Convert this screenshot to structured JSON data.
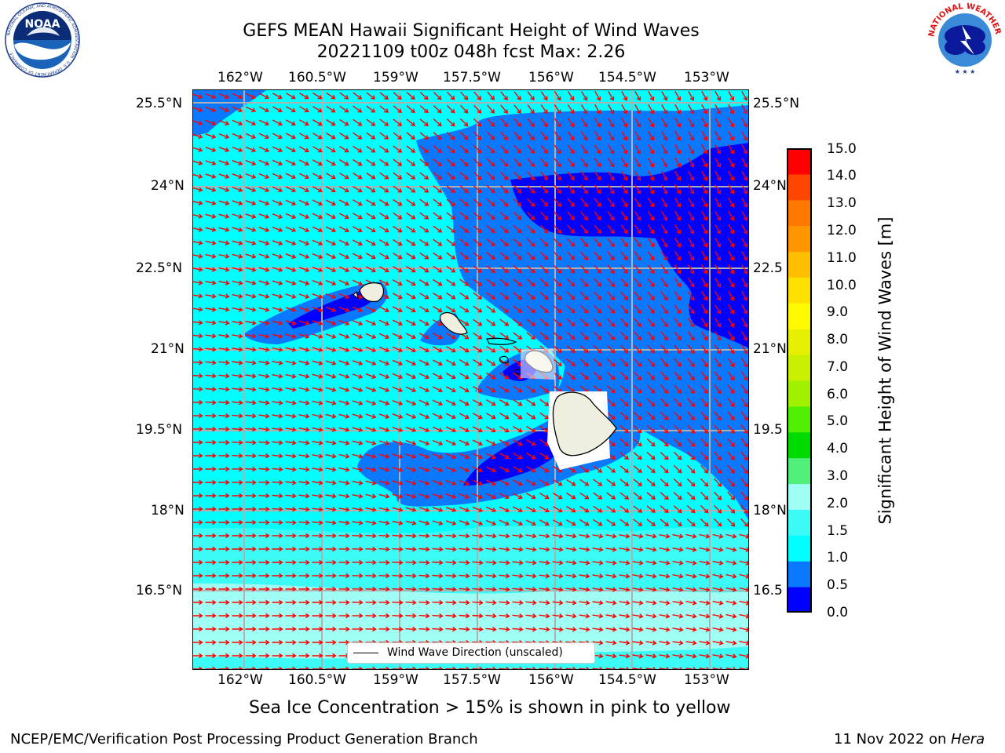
{
  "header": {
    "title_line1": "GEFS MEAN Hawaii Significant Height of Wind Waves",
    "title_line2": "20221109 t00z 048h fcst   Max: 2.26",
    "noaa_logo_text": "NOAA",
    "noaa_logo_ring_text": "NATIONAL OCEANIC AND ATMOSPHERIC ADMINISTRATION · U.S. DEPARTMENT OF COMMERCE",
    "nws_logo_ring_text": "NATIONAL WEATHER SERVICE"
  },
  "map": {
    "lon_ticks": [
      "162°W",
      "160.5°W",
      "159°W",
      "157.5°W",
      "156°W",
      "154.5°W",
      "153°W"
    ],
    "lat_ticks_left": [
      "25.5°N",
      "24°N",
      "22.5°N",
      "21°N",
      "19.5°N",
      "18°N",
      "16.5°N"
    ],
    "lat_ticks_right": [
      "25.5°N",
      "24°N",
      "22.5",
      "21°N",
      "19.5",
      "18°N",
      "16.5"
    ],
    "legend_label": "Wind Wave Direction (unscaled)",
    "wave_direction_color": "#ff0000"
  },
  "colorbar": {
    "ticks": [
      "15.0",
      "14.0",
      "13.0",
      "12.0",
      "11.0",
      "10.0",
      "9.0",
      "8.0",
      "7.0",
      "6.0",
      "5.0",
      "4.0",
      "3.0",
      "2.0",
      "1.5",
      "1.0",
      "0.5",
      "0.0"
    ],
    "colors": [
      "#0000ff",
      "#0a78ff",
      "#00ffff",
      "#3cfaf5",
      "#a0fff5",
      "#50f07a",
      "#00dc00",
      "#50f000",
      "#a0f000",
      "#c8f000",
      "#e6f000",
      "#fffa00",
      "#ffe100",
      "#ffbe00",
      "#ff9600",
      "#ff7800",
      "#ff4600",
      "#ff0000"
    ],
    "label": "Significant Height of Wind Waves [m]"
  },
  "footer": {
    "sea_ice_note": "Sea Ice Concentration > 15% is shown in pink to yellow",
    "credit": "NCEP/EMC/Verification Post Processing Product Generation Branch",
    "date": "11 Nov 2022 on ",
    "host": "Hera"
  }
}
